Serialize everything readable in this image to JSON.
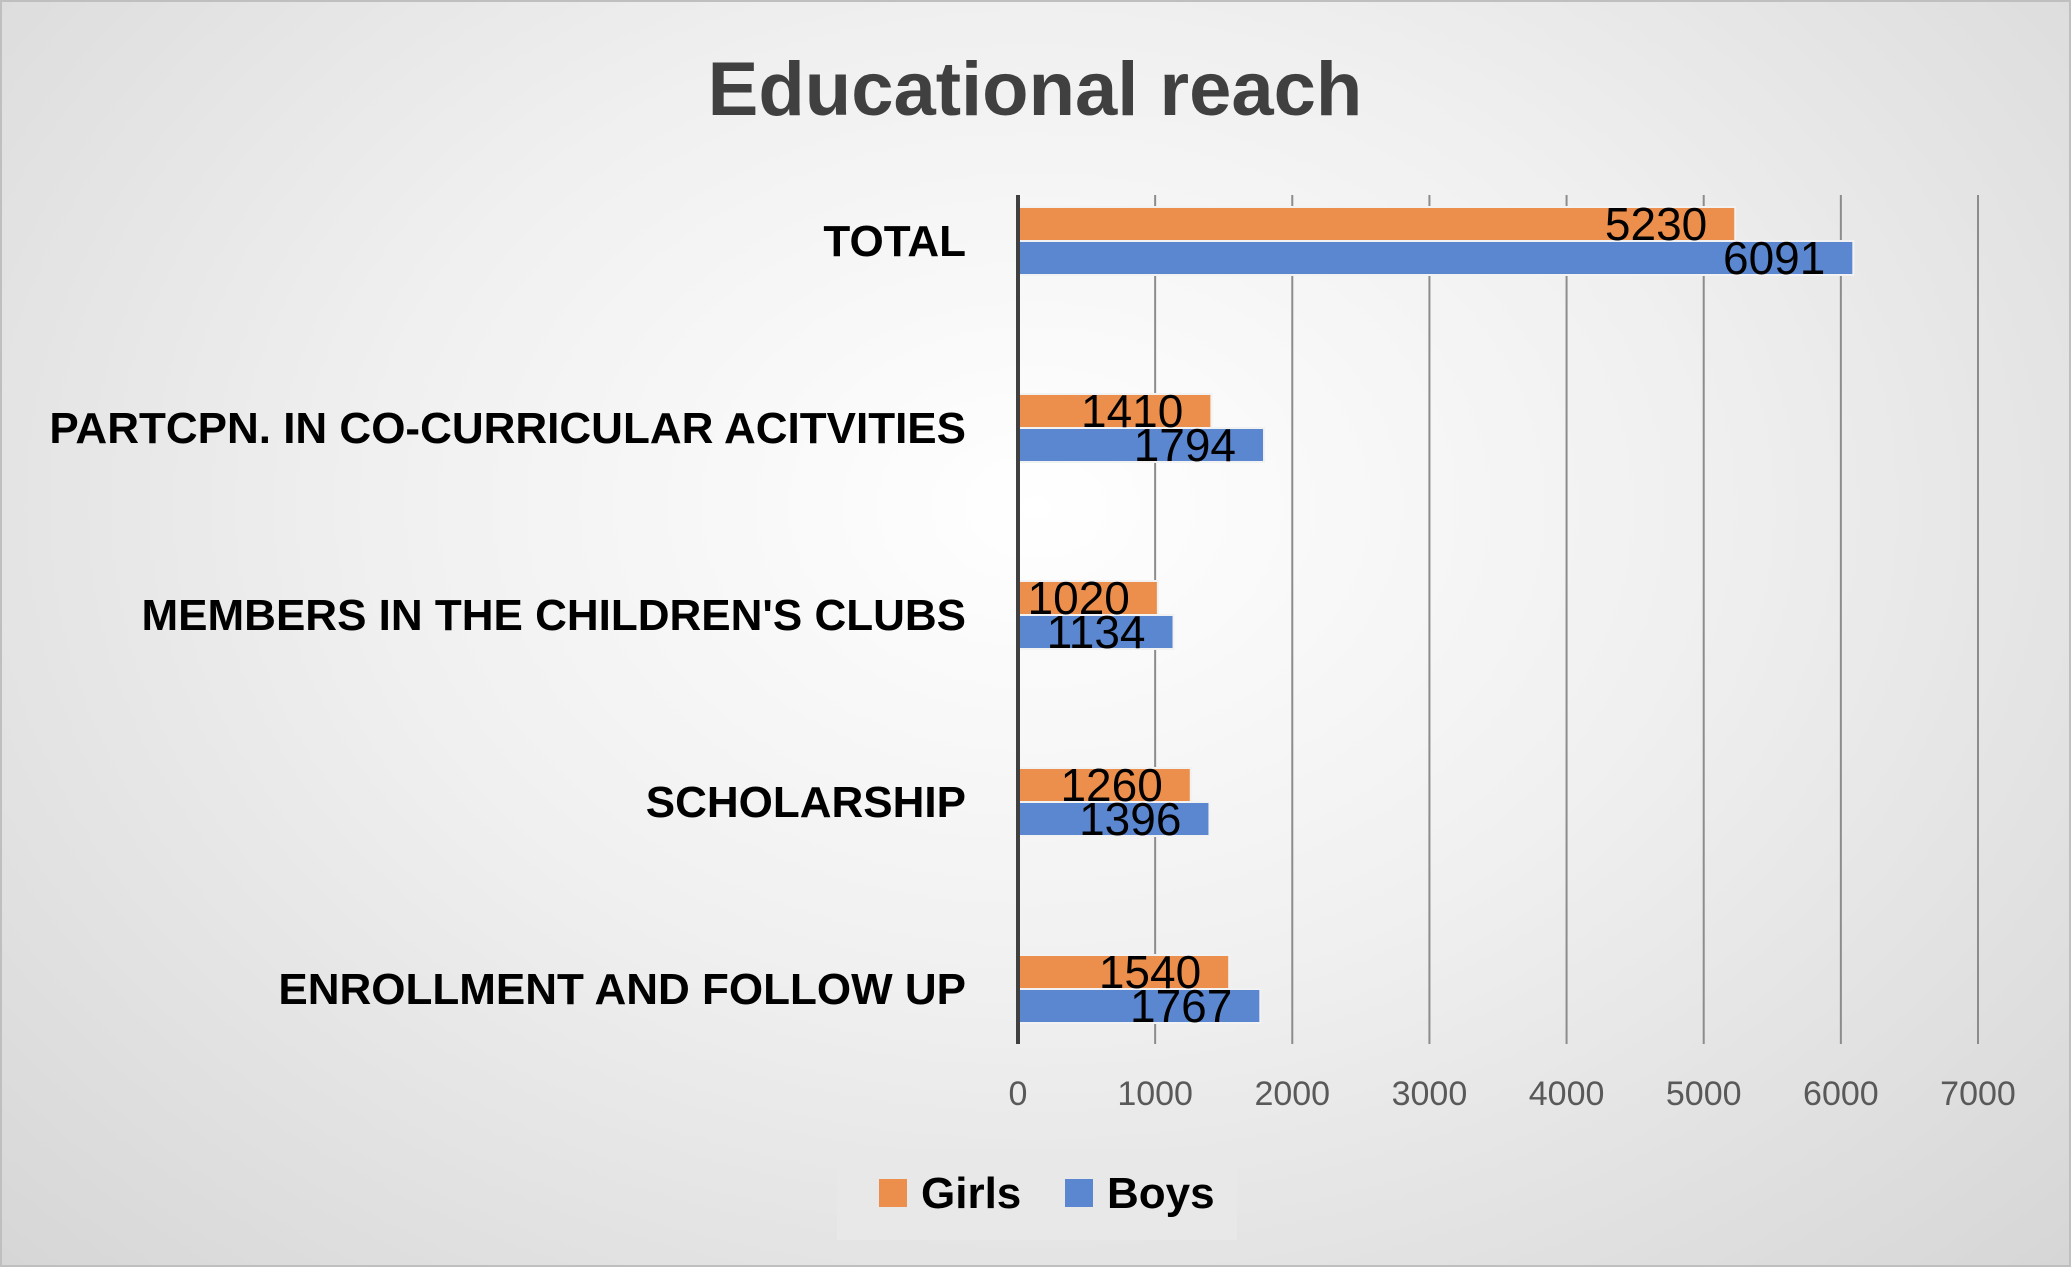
{
  "chart_data": {
    "type": "bar",
    "orientation": "horizontal",
    "title": "Educational reach",
    "categories": [
      "TOTAL",
      "PARTCPN. IN CO-CURRICULAR ACITVITIES",
      "MEMBERS IN THE CHILDREN'S CLUBS",
      "SCHOLARSHIP",
      "ENROLLMENT AND FOLLOW UP"
    ],
    "series": [
      {
        "name": "Girls",
        "color": "#ed8f4c",
        "values": [
          5230,
          1410,
          1020,
          1260,
          1540
        ]
      },
      {
        "name": "Boys",
        "color": "#5b86d0",
        "values": [
          6091,
          1794,
          1134,
          1396,
          1767
        ]
      }
    ],
    "xlim": [
      0,
      7000
    ],
    "x_ticks": [
      0,
      1000,
      2000,
      3000,
      4000,
      5000,
      6000,
      7000
    ],
    "x_tick_labels": [
      "0",
      "1000",
      "2000",
      "3000",
      "4000",
      "5000",
      "6000",
      "7000"
    ],
    "grid": "vertical",
    "data_labels": true,
    "legend_position": "bottom"
  }
}
